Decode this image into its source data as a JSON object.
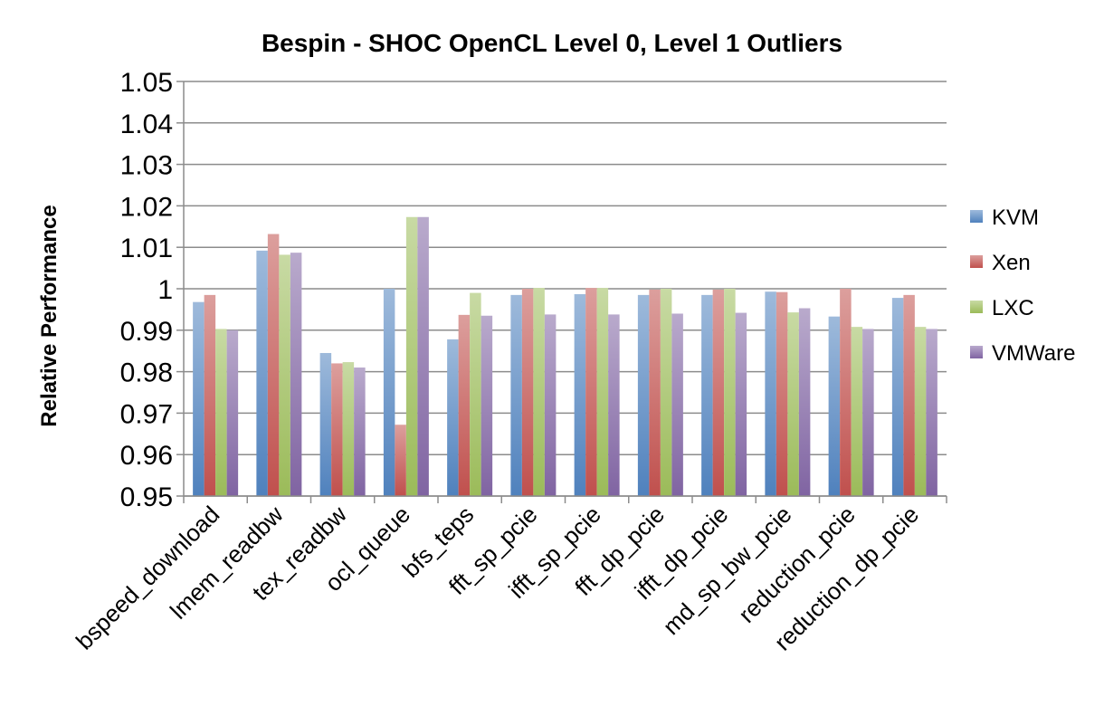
{
  "chart_data": {
    "type": "bar",
    "title": "Bespin - SHOC OpenCL Level 0, Level 1 Outliers",
    "xlabel": "",
    "ylabel": "Relative Performance",
    "ylim": [
      0.95,
      1.05
    ],
    "yticks": [
      "0.95",
      "0.96",
      "0.97",
      "0.98",
      "0.99",
      "1",
      "1.01",
      "1.02",
      "1.03",
      "1.04",
      "1.05"
    ],
    "grid": true,
    "legend_position": "right",
    "categories": [
      "bspeed_download",
      "lmem_readbw",
      "tex_readbw",
      "ocl_queue",
      "bfs_teps",
      "fft_sp_pcie",
      "ifft_sp_pcie",
      "fft_dp_pcie",
      "ifft_dp_pcie",
      "md_sp_bw_pcie",
      "reduction_pcie",
      "reduction_dp_pcie"
    ],
    "series": [
      {
        "name": "KVM",
        "color": "#4f81bd",
        "values": [
          0.9968,
          1.0092,
          0.9845,
          1.0,
          0.9878,
          0.9985,
          0.9987,
          0.9985,
          0.9985,
          0.9993,
          0.9933,
          0.9978
        ]
      },
      {
        "name": "Xen",
        "color": "#c0504d",
        "values": [
          0.9985,
          1.0132,
          0.982,
          0.9672,
          0.9937,
          1.0,
          1.0002,
          0.9998,
          0.9998,
          0.9992,
          1.0,
          0.9985
        ]
      },
      {
        "name": "LXC",
        "color": "#9bbb59",
        "values": [
          0.9903,
          1.0082,
          0.9823,
          1.0173,
          0.999,
          1.0002,
          1.0002,
          1.0,
          1.0,
          0.9943,
          0.9908,
          0.9908
        ]
      },
      {
        "name": "VMWare",
        "color": "#8064a2",
        "values": [
          0.99,
          1.0087,
          0.981,
          1.0173,
          0.9935,
          0.9938,
          0.9938,
          0.994,
          0.9942,
          0.9953,
          0.9903,
          0.9903
        ]
      }
    ]
  }
}
